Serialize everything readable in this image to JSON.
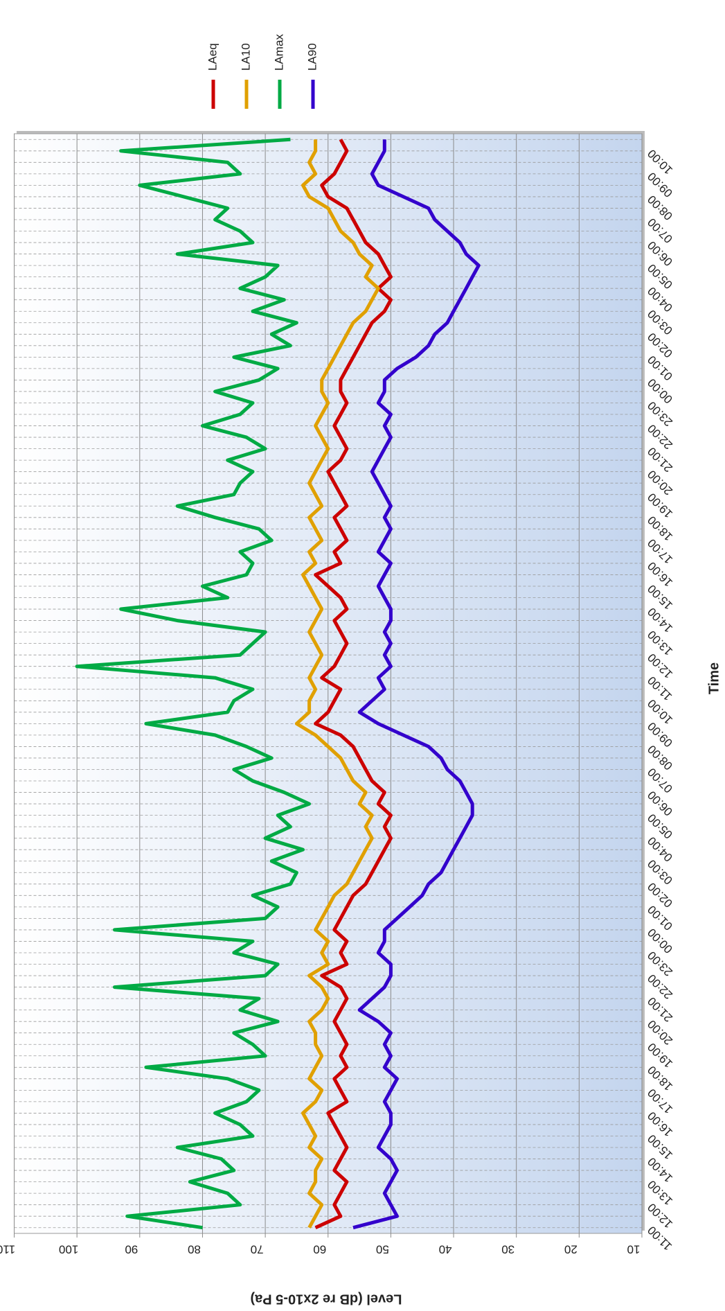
{
  "chart_data": {
    "type": "line",
    "x_label": "Time",
    "y_label": "Level (dB re 2x10-5 Pa)",
    "categories": [
      "11:00",
      null,
      "12:00",
      null,
      "13:00",
      null,
      "14:00",
      null,
      "15:00",
      null,
      "16:00",
      null,
      "17:00",
      null,
      "18:00",
      null,
      "19:00",
      null,
      "20:00",
      null,
      "21:00",
      null,
      "22:00",
      null,
      "23:00",
      null,
      "00:00",
      null,
      "01:00",
      null,
      "02:00",
      null,
      "03:00",
      null,
      "04:00",
      null,
      "05:00",
      null,
      "06:00",
      null,
      "07:00",
      null,
      "08:00",
      null,
      "09:00",
      null,
      "10:00",
      null,
      "11:00",
      null,
      "12:00",
      null,
      "13:00",
      null,
      "14:00",
      null,
      "15:00",
      null,
      "16:00",
      null,
      "17:00",
      null,
      "18:00",
      null,
      "19:00",
      null,
      "20:00",
      null,
      "21:00",
      null,
      "22:00",
      null,
      "23:00",
      null,
      "00:00",
      null,
      "01:00",
      null,
      "02:00",
      null,
      "03:00",
      null,
      "04:00",
      null,
      "05:00",
      null,
      "06:00",
      null,
      "07:00",
      null,
      "08:00",
      null,
      "09:00",
      null,
      "10:00",
      null
    ],
    "series": [
      {
        "name": "LAeq",
        "color": "#cc0000",
        "values": [
          62,
          58,
          59,
          58,
          57,
          59,
          58,
          57,
          58,
          59,
          60,
          57,
          58,
          59,
          57,
          58,
          57,
          58,
          59,
          58,
          57,
          58,
          61,
          57,
          58,
          57,
          59,
          58,
          57,
          56,
          54,
          53,
          52,
          51,
          50,
          51,
          50,
          52,
          51,
          53,
          54,
          55,
          56,
          58,
          62,
          60,
          59,
          58,
          61,
          59,
          58,
          57,
          58,
          59,
          57,
          58,
          60,
          62,
          58,
          59,
          57,
          58,
          59,
          57,
          58,
          59,
          60,
          58,
          57,
          58,
          59,
          58,
          57,
          58,
          58,
          57,
          56,
          55,
          54,
          53,
          51,
          50,
          52,
          50,
          51,
          52,
          54,
          55,
          56,
          57,
          60,
          61,
          59,
          58,
          57,
          58
        ]
      },
      {
        "name": "LA10",
        "color": "#e0a000",
        "values": [
          63,
          62,
          61,
          63,
          62,
          62,
          61,
          63,
          62,
          63,
          64,
          62,
          61,
          63,
          62,
          61,
          62,
          62,
          63,
          61,
          60,
          61,
          63,
          60,
          61,
          60,
          62,
          61,
          60,
          59,
          57,
          56,
          55,
          54,
          53,
          54,
          53,
          55,
          54,
          56,
          57,
          58,
          60,
          62,
          65,
          63,
          63,
          62,
          63,
          62,
          61,
          62,
          63,
          62,
          61,
          62,
          63,
          64,
          62,
          63,
          61,
          62,
          63,
          61,
          62,
          63,
          62,
          61,
          60,
          61,
          62,
          61,
          60,
          61,
          61,
          60,
          59,
          58,
          57,
          56,
          54,
          53,
          52,
          54,
          53,
          55,
          56,
          58,
          59,
          60,
          63,
          64,
          62,
          63,
          62,
          62
        ]
      },
      {
        "name": "LAmax",
        "color": "#00aa44",
        "values": [
          80,
          92,
          74,
          76,
          82,
          75,
          77,
          84,
          72,
          74,
          78,
          73,
          71,
          76,
          89,
          70,
          72,
          75,
          68,
          74,
          71,
          94,
          70,
          68,
          75,
          72,
          94,
          70,
          68,
          72,
          66,
          65,
          69,
          64,
          70,
          66,
          68,
          63,
          67,
          72,
          75,
          69,
          73,
          78,
          89,
          76,
          75,
          72,
          78,
          100,
          74,
          72,
          70,
          84,
          93,
          76,
          80,
          73,
          72,
          74,
          69,
          71,
          78,
          84,
          75,
          74,
          72,
          76,
          70,
          73,
          80,
          74,
          72,
          78,
          71,
          68,
          75,
          66,
          69,
          65,
          72,
          67,
          74,
          70,
          68,
          84,
          72,
          74,
          78,
          76,
          83,
          90,
          74,
          76,
          93,
          66
        ]
      },
      {
        "name": "LA90",
        "color": "#3300cc",
        "values": [
          56,
          49,
          50,
          51,
          50,
          49,
          50,
          52,
          51,
          50,
          50,
          51,
          50,
          49,
          51,
          50,
          51,
          50,
          52,
          55,
          53,
          51,
          50,
          50,
          52,
          51,
          51,
          49,
          47,
          45,
          44,
          42,
          41,
          40,
          39,
          38,
          37,
          37,
          38,
          39,
          41,
          42,
          44,
          48,
          52,
          55,
          53,
          51,
          52,
          50,
          51,
          50,
          51,
          50,
          50,
          51,
          52,
          51,
          50,
          52,
          51,
          50,
          51,
          50,
          51,
          52,
          53,
          52,
          51,
          50,
          51,
          50,
          52,
          51,
          51,
          49,
          46,
          44,
          43,
          41,
          40,
          39,
          38,
          37,
          36,
          38,
          39,
          41,
          43,
          44,
          48,
          52,
          53,
          52,
          51,
          51
        ]
      }
    ],
    "ylim": [
      10,
      110
    ],
    "yticks": [
      10,
      20,
      30,
      40,
      50,
      60,
      70,
      80,
      90,
      100,
      110
    ],
    "grid": true,
    "legend": "right"
  }
}
